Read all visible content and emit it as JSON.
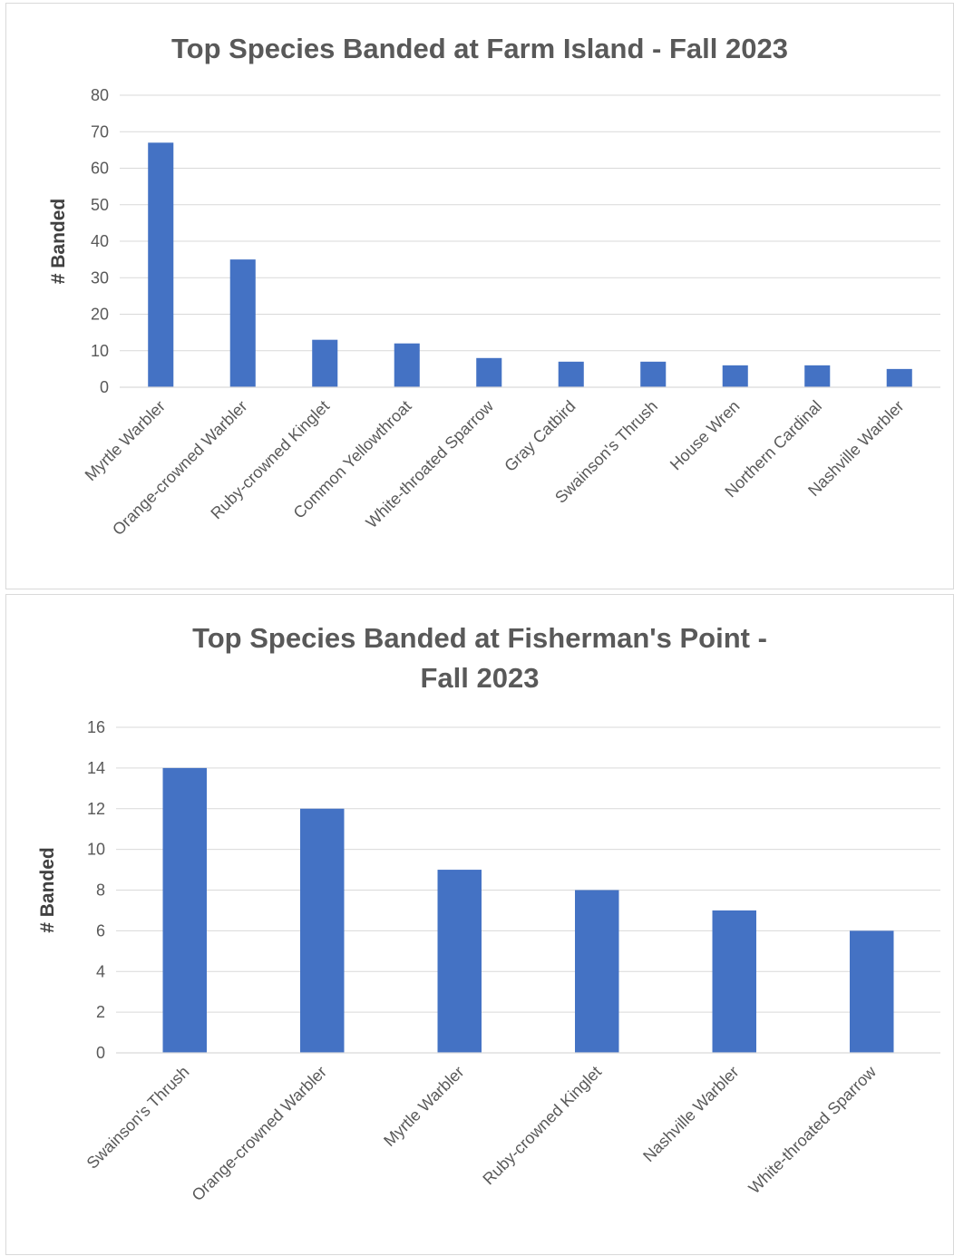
{
  "chart_data": [
    {
      "type": "bar",
      "title": "Top Species Banded at Farm Island - Fall 2023",
      "xlabel": "",
      "ylabel": "# Banded",
      "ylim": [
        0,
        80
      ],
      "yticks": [
        0,
        10,
        20,
        30,
        40,
        50,
        60,
        70,
        80
      ],
      "grid": true,
      "bar_color": "#4472C4",
      "categories": [
        "Myrtle Warbler",
        "Orange-crowned Warbler",
        "Ruby-crowned Kinglet",
        "Common Yellowthroat",
        "White-throated Sparrow",
        "Gray Catbird",
        "Swainson's Thrush",
        "House Wren",
        "Northern Cardinal",
        "Nashville Warbler"
      ],
      "values": [
        67,
        35,
        13,
        12,
        8,
        7,
        7,
        6,
        6,
        5
      ]
    },
    {
      "type": "bar",
      "title": "Top Species Banded at Fisherman's Point - Fall 2023",
      "title_lines": [
        "Top Species Banded at Fisherman's Point -",
        "Fall 2023"
      ],
      "xlabel": "",
      "ylabel": "# Banded",
      "ylim": [
        0,
        16
      ],
      "yticks": [
        0,
        2,
        4,
        6,
        8,
        10,
        12,
        14,
        16
      ],
      "grid": true,
      "bar_color": "#4472C4",
      "categories": [
        "Swainson's Thrush",
        "Orange-crowned Warbler",
        "Myrtle Warbler",
        "Ruby-crowned Kinglet",
        "Nashville Warbler",
        "White-throated Sparrow"
      ],
      "values": [
        14,
        12,
        9,
        8,
        7,
        6
      ]
    }
  ]
}
